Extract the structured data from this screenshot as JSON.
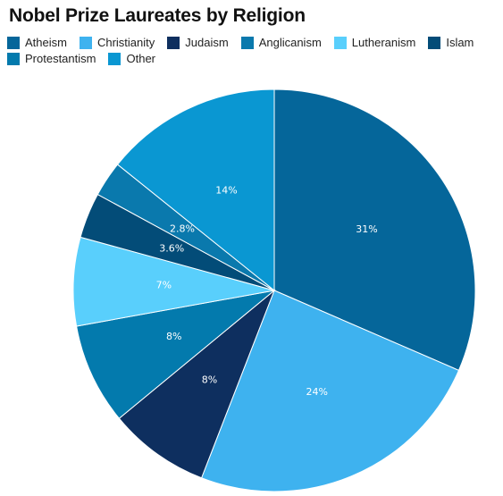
{
  "chart_data": {
    "type": "pie",
    "title": "Nobel Prize Laureates by Religion",
    "legend_position": "top-left",
    "slices": [
      {
        "name": "Atheism",
        "value": 31,
        "label": "31%",
        "color": "#05669a"
      },
      {
        "name": "Christianity",
        "value": 24,
        "label": "24%",
        "color": "#3eb2ef"
      },
      {
        "name": "Judaism",
        "value": 8,
        "label": "8%",
        "color": "#0e2f5f"
      },
      {
        "name": "Protestantism",
        "value": 8,
        "label": "8%",
        "color": "#037aad"
      },
      {
        "name": "Lutheranism",
        "value": 7,
        "label": "7%",
        "color": "#59cffc"
      },
      {
        "name": "Islam",
        "value": 3.6,
        "label": "3.6%",
        "color": "#034c78"
      },
      {
        "name": "Anglicanism",
        "value": 2.8,
        "label": "2.8%",
        "color": "#0a79ad"
      },
      {
        "name": "Other",
        "value": 14,
        "label": "14%",
        "color": "#0a97d2"
      }
    ],
    "legend": [
      {
        "name": "Atheism",
        "color": "#05669a"
      },
      {
        "name": "Christianity",
        "color": "#3eb2ef"
      },
      {
        "name": "Judaism",
        "color": "#0e2f5f"
      },
      {
        "name": "Anglicanism",
        "color": "#0a79ad"
      },
      {
        "name": "Lutheranism",
        "color": "#59cffc"
      },
      {
        "name": "Islam",
        "color": "#034c78"
      },
      {
        "name": "Protestantism",
        "color": "#037aad"
      },
      {
        "name": "Other",
        "color": "#0a97d2"
      }
    ]
  }
}
